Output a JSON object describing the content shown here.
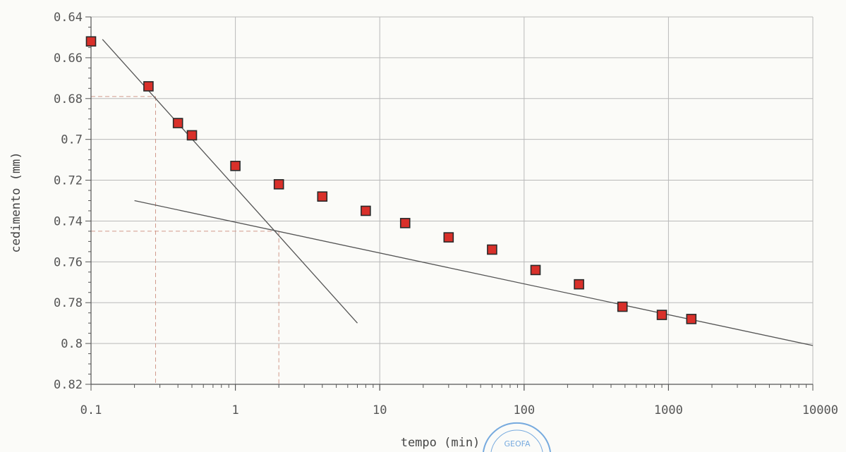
{
  "chart_data": {
    "type": "scatter",
    "xscale": "log",
    "xlabel": "tempo (min)",
    "ylabel": "cedimento (mm)",
    "xlim": [
      0.1,
      10000
    ],
    "ylim": [
      0.64,
      0.82
    ],
    "y_inverted": true,
    "grid": true,
    "x_ticks": [
      0.1,
      1,
      10,
      100,
      1000,
      10000
    ],
    "x_tick_labels": [
      "0.1",
      "1",
      "10",
      "100",
      "1000",
      "10000"
    ],
    "y_ticks": [
      0.64,
      0.66,
      0.68,
      0.7,
      0.72,
      0.74,
      0.76,
      0.78,
      0.8,
      0.82
    ],
    "y_tick_labels": [
      "0.64",
      "0.66",
      "0.68",
      "0.7",
      "0.72",
      "0.74",
      "0.76",
      "0.78",
      "0.8",
      "0.82"
    ],
    "series": [
      {
        "marker": "square",
        "color": "#d9302a",
        "x": [
          0.1,
          0.25,
          0.4,
          0.5,
          1,
          2,
          4,
          8,
          15,
          30,
          60,
          120,
          240,
          480,
          900,
          1440
        ],
        "y": [
          0.652,
          0.674,
          0.692,
          0.698,
          0.713,
          0.722,
          0.728,
          0.735,
          0.741,
          0.748,
          0.754,
          0.764,
          0.771,
          0.782,
          0.786,
          0.788
        ]
      }
    ],
    "fit_lines": [
      {
        "x": [
          0.12,
          7.0
        ],
        "y": [
          0.651,
          0.79
        ]
      },
      {
        "x": [
          0.2,
          10000
        ],
        "y": [
          0.73,
          0.801
        ]
      }
    ],
    "construction_lines": [
      {
        "x": 0.28,
        "y": 0.679
      },
      {
        "x": 2.0,
        "y": 0.745
      }
    ]
  },
  "stamp": {
    "text": "GEOFA"
  },
  "colors": {
    "grid": "#b9b9b9",
    "axis": "#555555",
    "fit": "#555555",
    "construction": "#d19a8c",
    "marker_fill": "#d9302a",
    "marker_edge": "#2a2a2a",
    "stamp": "#4a8fd6"
  }
}
